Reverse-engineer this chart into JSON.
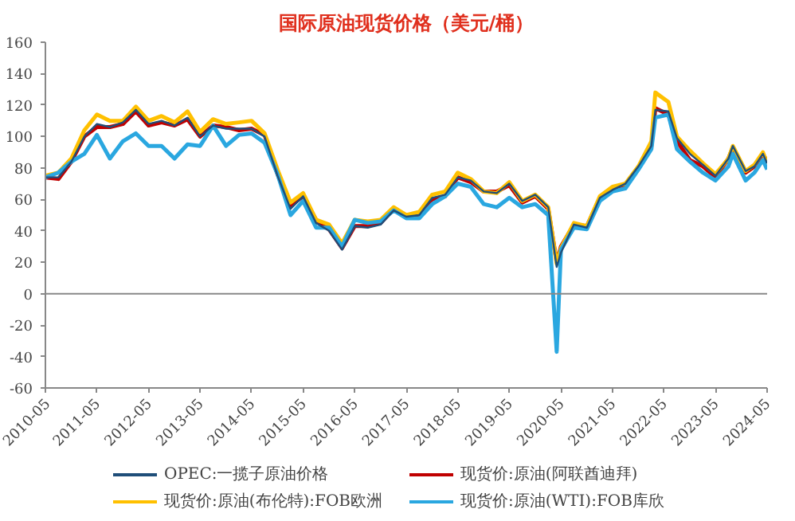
{
  "chart_data": {
    "type": "line",
    "title": "国际原油现货价格（美元/桶）",
    "x": [
      "2010-05",
      "2010-08",
      "2010-11",
      "2011-02",
      "2011-05",
      "2011-08",
      "2011-11",
      "2012-02",
      "2012-05",
      "2012-08",
      "2012-11",
      "2013-02",
      "2013-05",
      "2013-08",
      "2013-11",
      "2014-02",
      "2014-05",
      "2014-08",
      "2014-11",
      "2015-02",
      "2015-05",
      "2015-08",
      "2015-11",
      "2016-02",
      "2016-05",
      "2016-08",
      "2016-11",
      "2017-02",
      "2017-05",
      "2017-08",
      "2017-11",
      "2018-02",
      "2018-05",
      "2018-08",
      "2018-11",
      "2019-02",
      "2019-05",
      "2019-08",
      "2019-11",
      "2020-02",
      "2020-04",
      "2020-05",
      "2020-08",
      "2020-11",
      "2021-02",
      "2021-05",
      "2021-08",
      "2021-11",
      "2022-02",
      "2022-03",
      "2022-06",
      "2022-08",
      "2022-11",
      "2023-02",
      "2023-05",
      "2023-08",
      "2023-09",
      "2023-12",
      "2024-02",
      "2024-04",
      "2024-05"
    ],
    "series": [
      {
        "name": "OPEC:一揽子原油价格",
        "color": "#1f4e79",
        "values": [
          74,
          74,
          84,
          100,
          108,
          106,
          109,
          117,
          108,
          110,
          107,
          112,
          100,
          107,
          105,
          105,
          105,
          100,
          75,
          54,
          62,
          45,
          40,
          28,
          43,
          42,
          44,
          53,
          49,
          50,
          61,
          63,
          74,
          72,
          65,
          64,
          70,
          59,
          63,
          55,
          17,
          26,
          44,
          42,
          61,
          66,
          70,
          81,
          94,
          117,
          116,
          99,
          89,
          82,
          75,
          86,
          94,
          78,
          81,
          89,
          83
        ]
      },
      {
        "name": "现货价:原油(阿联酋迪拜)",
        "color": "#c00000",
        "values": [
          74,
          73,
          84,
          100,
          106,
          106,
          108,
          116,
          107,
          109,
          107,
          111,
          100,
          107,
          106,
          104,
          105,
          101,
          76,
          56,
          62,
          47,
          41,
          29,
          43,
          43,
          45,
          54,
          50,
          50,
          60,
          62,
          74,
          71,
          65,
          65,
          69,
          58,
          62,
          54,
          20,
          30,
          44,
          43,
          61,
          66,
          69,
          80,
          94,
          118,
          114,
          97,
          85,
          81,
          74,
          86,
          93,
          77,
          81,
          89,
          84
        ]
      },
      {
        "name": "现货价:原油(布伦特):FOB欧洲",
        "color": "#ffc000",
        "values": [
          75,
          77,
          86,
          104,
          114,
          110,
          110,
          119,
          110,
          113,
          109,
          116,
          103,
          111,
          108,
          109,
          110,
          102,
          79,
          58,
          64,
          47,
          44,
          32,
          47,
          46,
          47,
          55,
          50,
          52,
          63,
          65,
          77,
          73,
          65,
          64,
          71,
          59,
          63,
          55,
          19,
          29,
          45,
          43,
          62,
          68,
          70,
          81,
          97,
          128,
          122,
          100,
          91,
          83,
          76,
          86,
          94,
          78,
          82,
          90,
          83
        ]
      },
      {
        "name": "现货价:原油(WTI):FOB库欣",
        "color": "#2aa7e0",
        "values": [
          74,
          77,
          84,
          89,
          101,
          86,
          97,
          102,
          94,
          94,
          86,
          95,
          94,
          107,
          94,
          101,
          102,
          96,
          76,
          50,
          59,
          42,
          42,
          30,
          47,
          45,
          46,
          53,
          48,
          48,
          57,
          62,
          70,
          68,
          57,
          55,
          61,
          55,
          57,
          50,
          -37,
          28,
          42,
          41,
          59,
          65,
          67,
          79,
          92,
          112,
          114,
          92,
          84,
          77,
          72,
          81,
          89,
          72,
          77,
          85,
          79
        ]
      }
    ],
    "xlim": [
      "2010-05",
      "2024-05"
    ],
    "xticks": [
      "2010-05",
      "2011-05",
      "2012-05",
      "2013-05",
      "2014-05",
      "2015-05",
      "2016-05",
      "2017-05",
      "2018-05",
      "2019-05",
      "2020-05",
      "2021-05",
      "2022-05",
      "2023-05",
      "2024-05"
    ],
    "ylim": [
      -60,
      160
    ],
    "yticks": [
      -60,
      -40,
      -20,
      0,
      20,
      40,
      60,
      80,
      100,
      120,
      140,
      160
    ],
    "ref_lines": [
      {
        "axis": "y",
        "value": 0,
        "color": "#888888"
      }
    ],
    "grid": false,
    "legend": "bottom",
    "marker": "none",
    "line_style": "solid"
  }
}
